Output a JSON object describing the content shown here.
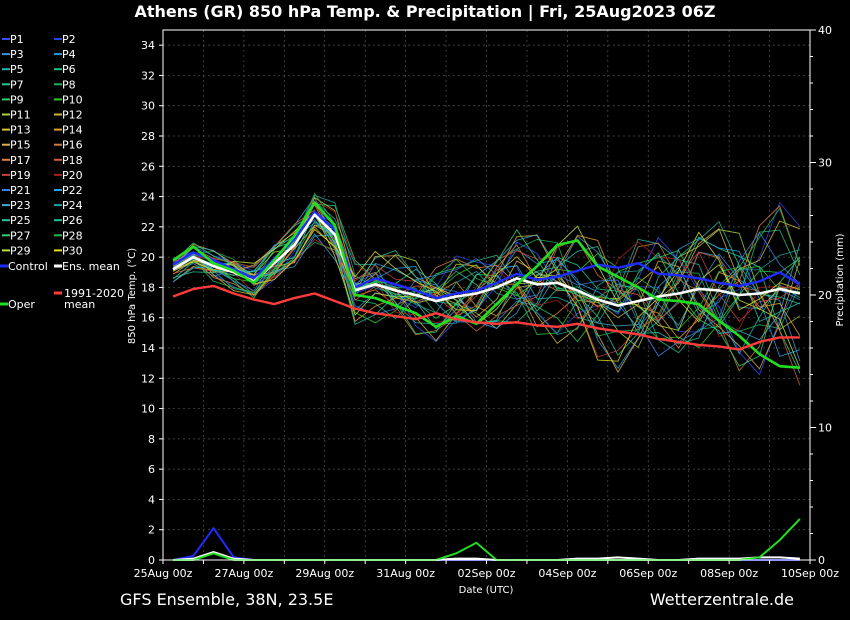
{
  "title": "Athens  (GR)  850 hPa Temp. & Precipitation | Fri, 25Aug2023 06Z",
  "footer_left": "GFS Ensemble, 38N, 23.5E",
  "footer_right": "Wetterzentrale.de",
  "colors": {
    "background": "#000000",
    "control": "#1f2bff",
    "ens_mean": "#ffffff",
    "climate_mean": "#ff3b3b",
    "oper": "#22dd22"
  },
  "chart_data": {
    "type": "line",
    "grid": true,
    "xlabel": "Date (UTC)",
    "ylabel": "850 hPa Temp. (°C)",
    "y2label": "Precipitation (mm)",
    "ylim": [
      0,
      35
    ],
    "y2lim": [
      0,
      40
    ],
    "yticks": [
      0,
      2,
      4,
      6,
      8,
      10,
      12,
      14,
      16,
      18,
      20,
      22,
      24,
      26,
      28,
      30,
      32,
      34
    ],
    "y2ticks": [
      0,
      10,
      20,
      30,
      40
    ],
    "xlim_hours": [
      0,
      384
    ],
    "xticks": [
      "25Aug 00z",
      "27Aug 00z",
      "29Aug 00z",
      "31Aug 00z",
      "02Sep 00z",
      "04Sep 00z",
      "06Sep 00z",
      "08Sep 00z",
      "10Sep 00z"
    ],
    "x_hours": [
      6,
      18,
      30,
      42,
      54,
      66,
      78,
      90,
      102,
      114,
      126,
      138,
      150,
      162,
      174,
      186,
      198,
      210,
      222,
      234,
      246,
      258,
      270,
      282,
      294,
      306,
      318,
      330,
      342,
      354,
      366,
      378
    ],
    "legend": {
      "members": [
        {
          "label": "P1",
          "color": "#3a4cff"
        },
        {
          "label": "P2",
          "color": "#2a46e0"
        },
        {
          "label": "P3",
          "color": "#3f8fd8"
        },
        {
          "label": "P4",
          "color": "#2a9ad6"
        },
        {
          "label": "P5",
          "color": "#20b4b0"
        },
        {
          "label": "P6",
          "color": "#20c080"
        },
        {
          "label": "P7",
          "color": "#25c890"
        },
        {
          "label": "P8",
          "color": "#22b05a"
        },
        {
          "label": "P9",
          "color": "#2dd060"
        },
        {
          "label": "P10",
          "color": "#30c830"
        },
        {
          "label": "P11",
          "color": "#a8d040"
        },
        {
          "label": "P12",
          "color": "#d0b040"
        },
        {
          "label": "P13",
          "color": "#d8c030"
        },
        {
          "label": "P14",
          "color": "#e0a030"
        },
        {
          "label": "P15",
          "color": "#e0b050"
        },
        {
          "label": "P16",
          "color": "#c88040"
        },
        {
          "label": "P17",
          "color": "#e08040"
        },
        {
          "label": "P18",
          "color": "#d06040"
        },
        {
          "label": "P19",
          "color": "#c84040"
        },
        {
          "label": "P20",
          "color": "#a82020"
        },
        {
          "label": "P21",
          "color": "#4080e0"
        },
        {
          "label": "P22",
          "color": "#2aa0e8"
        },
        {
          "label": "P23",
          "color": "#40a8d0"
        },
        {
          "label": "P24",
          "color": "#20a0a0"
        },
        {
          "label": "P25",
          "color": "#30c0a0"
        },
        {
          "label": "P26",
          "color": "#20c098"
        },
        {
          "label": "P27",
          "color": "#30d070"
        },
        {
          "label": "P28",
          "color": "#28b848"
        },
        {
          "label": "P29",
          "color": "#b8e040"
        },
        {
          "label": "P30",
          "color": "#e0e020"
        }
      ],
      "control_label": "Control",
      "ens_mean_label": "Ens. mean",
      "oper_label": "Oper",
      "climate_label_1": "1991-2020",
      "climate_label_2": "mean"
    },
    "series": [
      {
        "name": "Control",
        "color": "#1f2bff",
        "values": [
          19.5,
          20.3,
          19.8,
          19.2,
          18.6,
          19.9,
          21.2,
          23.0,
          21.8,
          18.0,
          18.6,
          18.2,
          17.8,
          17.3,
          17.6,
          17.8,
          18.3,
          18.9,
          18.5,
          18.7,
          19.1,
          19.5,
          19.3,
          19.6,
          18.9,
          18.8,
          18.6,
          18.3,
          18.1,
          18.4,
          19.0,
          18.2
        ]
      },
      {
        "name": "Ens. mean",
        "color": "#ffffff",
        "values": [
          19.2,
          20.0,
          19.4,
          19.0,
          18.4,
          19.6,
          20.8,
          22.8,
          21.5,
          17.8,
          18.2,
          17.8,
          17.5,
          17.1,
          17.4,
          17.6,
          18.0,
          18.6,
          18.2,
          18.3,
          17.8,
          17.2,
          16.8,
          17.1,
          17.4,
          17.6,
          17.9,
          17.8,
          17.5,
          17.6,
          17.9,
          17.6
        ]
      },
      {
        "name": "Oper",
        "color": "#22dd22",
        "values": [
          19.8,
          20.7,
          19.6,
          19.1,
          18.3,
          19.8,
          21.4,
          23.6,
          22.1,
          17.5,
          17.3,
          16.8,
          16.3,
          15.4,
          16.1,
          15.6,
          16.9,
          18.2,
          19.4,
          20.8,
          21.1,
          19.4,
          18.7,
          18.0,
          17.2,
          17.1,
          16.9,
          15.8,
          14.8,
          13.6,
          12.8,
          12.7
        ]
      },
      {
        "name": "1991-2020 mean",
        "color": "#ff3b3b",
        "values": [
          17.4,
          17.9,
          18.1,
          17.6,
          17.2,
          16.9,
          17.3,
          17.6,
          17.1,
          16.6,
          16.3,
          16.1,
          15.9,
          16.3,
          15.9,
          15.7,
          15.6,
          15.7,
          15.5,
          15.4,
          15.6,
          15.3,
          15.1,
          14.9,
          14.6,
          14.4,
          14.2,
          14.1,
          13.9,
          14.4,
          14.7,
          14.7
        ]
      }
    ],
    "precip_series": [
      {
        "name": "Control",
        "color": "#1f2bff",
        "values": [
          0,
          0.3,
          2.4,
          0.2,
          0,
          0,
          0,
          0,
          0,
          0,
          0,
          0,
          0,
          0,
          0,
          0,
          0,
          0,
          0,
          0,
          0,
          0,
          0,
          0,
          0,
          0,
          0,
          0,
          0,
          0,
          0,
          0
        ]
      },
      {
        "name": "Ens. mean",
        "color": "#ffffff",
        "values": [
          0,
          0.1,
          0.6,
          0.1,
          0,
          0,
          0,
          0,
          0,
          0,
          0,
          0,
          0,
          0,
          0.1,
          0.1,
          0,
          0,
          0,
          0,
          0.1,
          0.1,
          0.2,
          0.1,
          0,
          0,
          0.1,
          0.1,
          0.1,
          0.2,
          0.2,
          0.1
        ]
      },
      {
        "name": "Oper",
        "color": "#22dd22",
        "values": [
          0,
          0,
          0.5,
          0,
          0,
          0,
          0,
          0,
          0,
          0,
          0,
          0,
          0,
          0,
          0.5,
          1.3,
          0,
          0,
          0,
          0,
          0,
          0,
          0,
          0,
          0,
          0,
          0,
          0,
          0,
          0.2,
          1.5,
          3.1
        ]
      }
    ]
  }
}
